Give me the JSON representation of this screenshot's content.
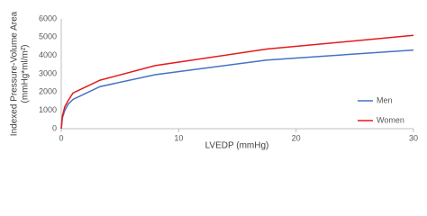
{
  "chart_data": {
    "type": "line",
    "xlabel": "LVEDP (mmHg)",
    "ylabel": [
      "Indexed Pressure-Volume Area",
      "(mmHg*ml/m²)"
    ],
    "x": [
      0,
      0.1,
      0.3,
      0.6,
      1,
      3.3,
      8,
      17.5,
      30
    ],
    "series": [
      {
        "name": "Men",
        "color": "#4472c4",
        "values": [
          0,
          600,
          1000,
          1350,
          1600,
          2300,
          2950,
          3750,
          4300
        ]
      },
      {
        "name": "Women",
        "color": "#e31a1c",
        "values": [
          0,
          700,
          1200,
          1550,
          1950,
          2650,
          3450,
          4350,
          5100
        ]
      }
    ],
    "xlim": [
      0,
      30
    ],
    "xticks": [
      0,
      10,
      20,
      30
    ],
    "ylim": [
      0,
      6000
    ],
    "yticks": [
      0,
      1000,
      2000,
      3000,
      4000,
      5000,
      6000
    ],
    "grid": false,
    "legend": "right"
  }
}
